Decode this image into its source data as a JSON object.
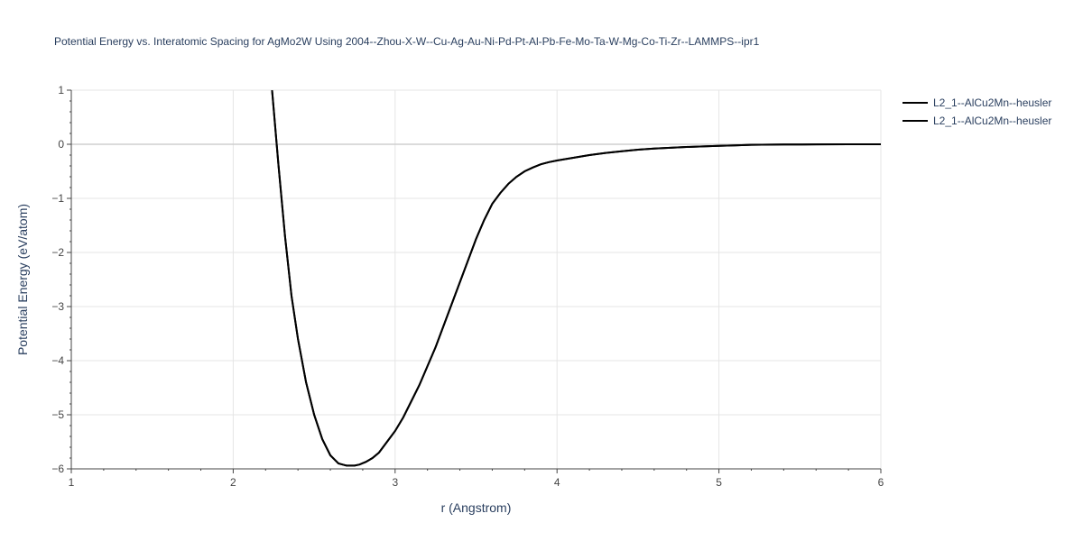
{
  "chart_data": {
    "type": "line",
    "title": "Potential Energy vs. Interatomic Spacing for AgMo2W Using 2004--Zhou-X-W--Cu-Ag-Au-Ni-Pd-Pt-Al-Pb-Fe-Mo-Ta-W-Mg-Co-Ti-Zr--LAMMPS--ipr1",
    "xlabel": "r (Angstrom)",
    "ylabel": "Potential Energy (eV/atom)",
    "xlim": [
      1,
      6
    ],
    "ylim": [
      -6,
      1
    ],
    "xticks": [
      1,
      2,
      3,
      4,
      5,
      6
    ],
    "yticks": [
      1,
      0,
      -1,
      -2,
      -3,
      -4,
      -5,
      -6
    ],
    "xtick_labels": [
      "1",
      "2",
      "3",
      "4",
      "5",
      "6"
    ],
    "ytick_labels": [
      "1",
      "0",
      "−1",
      "−2",
      "−3",
      "−4",
      "−5",
      "−6"
    ],
    "grid": true,
    "legend_position": "top-right",
    "series": [
      {
        "name": "L2_1--AlCu2Mn--heusler",
        "color": "#000000",
        "x": [
          2.24,
          2.28,
          2.32,
          2.36,
          2.4,
          2.45,
          2.5,
          2.55,
          2.6,
          2.65,
          2.7,
          2.75,
          2.78,
          2.82,
          2.86,
          2.9,
          2.95,
          3.0,
          3.05,
          3.1,
          3.15,
          3.2,
          3.25,
          3.3,
          3.35,
          3.4,
          3.45,
          3.5,
          3.55,
          3.6,
          3.65,
          3.7,
          3.75,
          3.8,
          3.85,
          3.9,
          3.95,
          4.0,
          4.1,
          4.2,
          4.3,
          4.4,
          4.5,
          4.6,
          4.7,
          4.8,
          4.9,
          5.0,
          5.1,
          5.2,
          5.4,
          5.6,
          5.8,
          6.0
        ],
        "y": [
          1.0,
          -0.4,
          -1.7,
          -2.8,
          -3.6,
          -4.4,
          -5.0,
          -5.45,
          -5.75,
          -5.9,
          -5.94,
          -5.94,
          -5.92,
          -5.87,
          -5.8,
          -5.7,
          -5.5,
          -5.3,
          -5.05,
          -4.75,
          -4.45,
          -4.1,
          -3.75,
          -3.35,
          -2.95,
          -2.55,
          -2.15,
          -1.75,
          -1.4,
          -1.1,
          -0.9,
          -0.73,
          -0.6,
          -0.5,
          -0.43,
          -0.37,
          -0.33,
          -0.3,
          -0.25,
          -0.2,
          -0.16,
          -0.13,
          -0.1,
          -0.08,
          -0.065,
          -0.05,
          -0.04,
          -0.03,
          -0.02,
          -0.01,
          -0.005,
          -0.002,
          -0.001,
          0.0
        ]
      },
      {
        "name": "L2_1--AlCu2Mn--heusler",
        "color": "#000000",
        "x": [
          2.24,
          2.28,
          2.32,
          2.36,
          2.4,
          2.45,
          2.5,
          2.55,
          2.6,
          2.65,
          2.7,
          2.75,
          2.78,
          2.82,
          2.86,
          2.9,
          2.95,
          3.0,
          3.05,
          3.1,
          3.15,
          3.2,
          3.25,
          3.3,
          3.35,
          3.4,
          3.45,
          3.5,
          3.55,
          3.6,
          3.65,
          3.7,
          3.75,
          3.8,
          3.85,
          3.9,
          3.95,
          4.0,
          4.1,
          4.2,
          4.3,
          4.4,
          4.5,
          4.6,
          4.7,
          4.8,
          4.9,
          5.0,
          5.1,
          5.2,
          5.4,
          5.6,
          5.8,
          6.0
        ],
        "y": [
          1.0,
          -0.4,
          -1.7,
          -2.8,
          -3.6,
          -4.4,
          -5.0,
          -5.45,
          -5.75,
          -5.9,
          -5.94,
          -5.94,
          -5.92,
          -5.87,
          -5.8,
          -5.7,
          -5.5,
          -5.3,
          -5.05,
          -4.75,
          -4.45,
          -4.1,
          -3.75,
          -3.35,
          -2.95,
          -2.55,
          -2.15,
          -1.75,
          -1.4,
          -1.1,
          -0.9,
          -0.73,
          -0.6,
          -0.5,
          -0.43,
          -0.37,
          -0.33,
          -0.3,
          -0.25,
          -0.2,
          -0.16,
          -0.13,
          -0.1,
          -0.08,
          -0.065,
          -0.05,
          -0.04,
          -0.03,
          -0.02,
          -0.01,
          -0.005,
          -0.002,
          -0.001,
          0.0
        ]
      }
    ]
  }
}
